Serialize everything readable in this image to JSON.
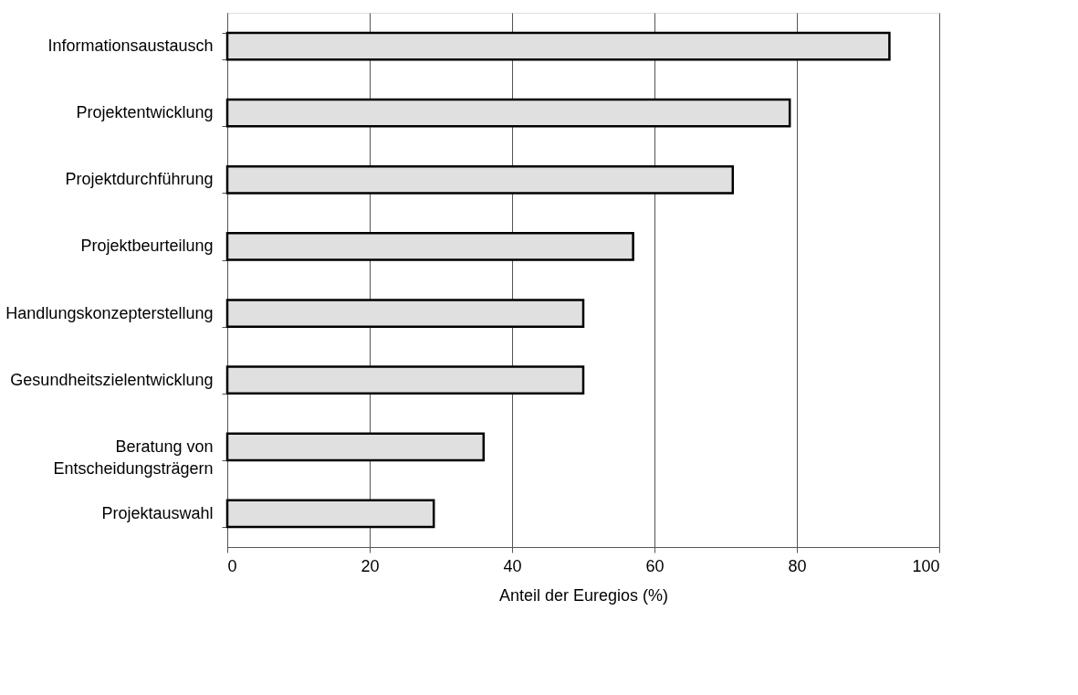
{
  "chart_data": {
    "type": "bar",
    "orientation": "horizontal",
    "xlabel": "Anteil der Euregios (%)",
    "categories": [
      "Informationsaustausch",
      "Projektentwicklung",
      "Projektdurchführung",
      "Projektbeurteilung",
      "Handlungskonzepterstellung",
      "Gesundheitszielentwicklung",
      "Beratung von\nEntscheidungsträgern",
      "Projektauswahl"
    ],
    "values": [
      93,
      79,
      71,
      57,
      50,
      50,
      36,
      29
    ],
    "color": "#e0e0e0",
    "xlim": [
      0,
      100
    ],
    "xticks": [
      0,
      20,
      40,
      60,
      80,
      100
    ],
    "grid": "x"
  }
}
